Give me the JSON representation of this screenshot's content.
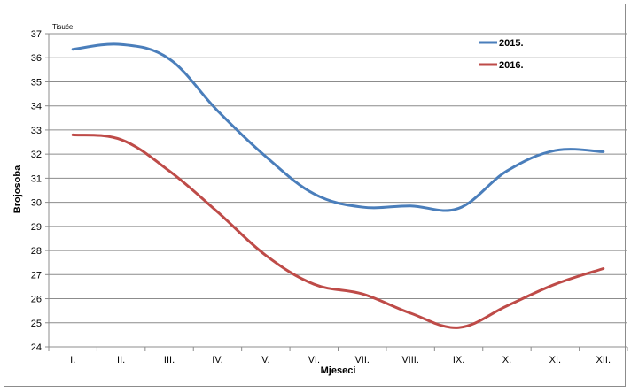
{
  "chart_data": {
    "type": "line",
    "units_label": "Tisuće",
    "xlabel": "Mjeseci",
    "ylabel": "Brojosoba",
    "categories": [
      "I.",
      "II.",
      "III.",
      "IV.",
      "V.",
      "VI.",
      "VII.",
      "VIII.",
      "IX.",
      "X.",
      "XI.",
      "XII."
    ],
    "ylim": [
      24,
      37
    ],
    "yticks": [
      24,
      25,
      26,
      27,
      28,
      29,
      30,
      31,
      32,
      33,
      34,
      35,
      36,
      37
    ],
    "grid": true,
    "legend_position": "top-right",
    "series": [
      {
        "name": "2015.",
        "color": "#4a7ebb",
        "values": [
          36.35,
          36.55,
          35.95,
          33.8,
          31.9,
          30.35,
          29.8,
          29.85,
          29.75,
          31.3,
          32.15,
          32.1
        ]
      },
      {
        "name": "2016.",
        "color": "#be4b48",
        "values": [
          32.8,
          32.6,
          31.3,
          29.6,
          27.8,
          26.6,
          26.2,
          25.4,
          24.8,
          25.7,
          26.6,
          27.25
        ]
      }
    ]
  }
}
